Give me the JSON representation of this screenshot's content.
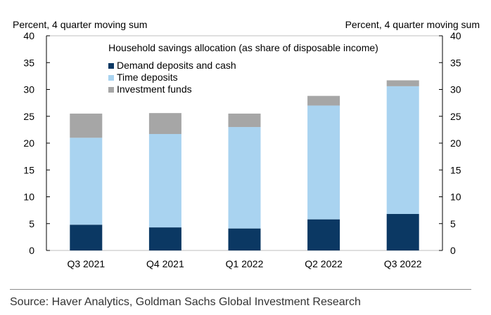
{
  "chart_data": {
    "type": "bar",
    "stacked": true,
    "title": "Household savings allocation (as share of disposable income)",
    "ylabel_left": "Percent, 4 quarter moving sum",
    "ylabel_right": "Percent, 4 quarter moving sum",
    "ylim": [
      0,
      40
    ],
    "yticks": [
      0,
      5,
      10,
      15,
      20,
      25,
      30,
      35,
      40
    ],
    "categories": [
      "Q3 2021",
      "Q4 2021",
      "Q1 2022",
      "Q2 2022",
      "Q3 2022"
    ],
    "series": [
      {
        "name": "Demand deposits and cash",
        "color": "#0b3863",
        "values": [
          4.8,
          4.3,
          4.1,
          5.8,
          6.8
        ]
      },
      {
        "name": "Time deposits",
        "color": "#a9d3f0",
        "values": [
          16.2,
          17.4,
          18.9,
          21.2,
          23.8
        ]
      },
      {
        "name": "Investment funds",
        "color": "#a6a6a6",
        "values": [
          4.5,
          3.9,
          2.5,
          1.8,
          1.1
        ]
      }
    ],
    "legend_position": "top-left",
    "grid": false
  },
  "source": "Source: Haver Analytics, Goldman Sachs Global Investment Research"
}
